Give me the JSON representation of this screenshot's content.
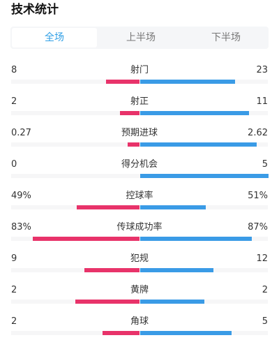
{
  "header": {
    "title": "技术统计"
  },
  "tabs": [
    {
      "label": "全场",
      "active": true
    },
    {
      "label": "上半场",
      "active": false
    },
    {
      "label": "下半场",
      "active": false
    }
  ],
  "colors": {
    "home": "#e8336a",
    "away": "#3a9be6",
    "tab_active": "#2f9fe6"
  },
  "stats": [
    {
      "name": "射门",
      "left": "8",
      "right": "23",
      "left_frac": 0.26,
      "right_frac": 0.74
    },
    {
      "name": "射正",
      "left": "2",
      "right": "11",
      "left_frac": 0.15,
      "right_frac": 0.85
    },
    {
      "name": "预期进球",
      "left": "0.27",
      "right": "2.62",
      "left_frac": 0.09,
      "right_frac": 0.91
    },
    {
      "name": "得分机会",
      "left": "0",
      "right": "5",
      "left_frac": 0.0,
      "right_frac": 1.0
    },
    {
      "name": "控球率",
      "left": "49%",
      "right": "51%",
      "left_frac": 0.49,
      "right_frac": 0.51
    },
    {
      "name": "传球成功率",
      "left": "83%",
      "right": "87%",
      "left_frac": 0.83,
      "right_frac": 0.87
    },
    {
      "name": "犯规",
      "left": "9",
      "right": "12",
      "left_frac": 0.43,
      "right_frac": 0.57
    },
    {
      "name": "黄牌",
      "left": "2",
      "right": "2",
      "left_frac": 0.5,
      "right_frac": 0.5
    },
    {
      "name": "角球",
      "left": "2",
      "right": "5",
      "left_frac": 0.29,
      "right_frac": 0.71
    }
  ]
}
